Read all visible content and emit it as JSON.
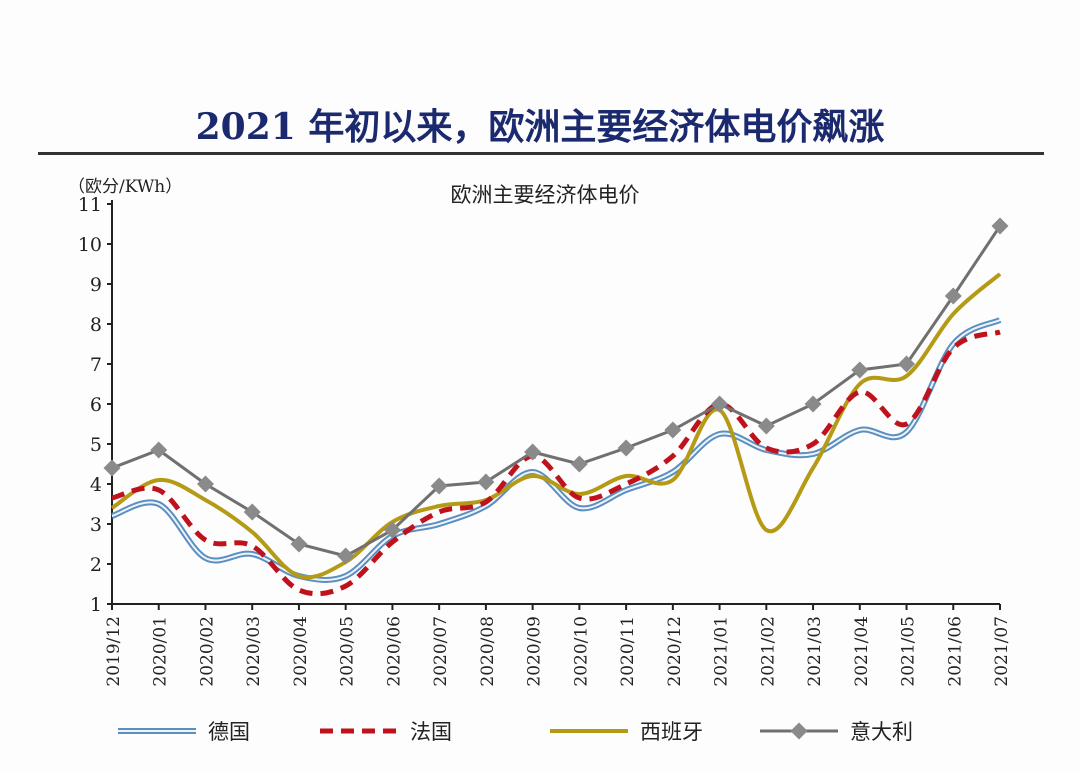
{
  "page_title": "2021 年初以来，欧洲主要经济体电价飙涨",
  "chart_data": {
    "type": "line",
    "title": "欧洲主要经济体电价",
    "ylabel": "（欧分/KWh）",
    "xlabel": "",
    "ylim": [
      1,
      11
    ],
    "yticks": [
      "1",
      "2",
      "3",
      "4",
      "5",
      "6",
      "7",
      "8",
      "9",
      "10",
      "11"
    ],
    "categories": [
      "2019/12",
      "2020/01",
      "2020/02",
      "2020/03",
      "2020/04",
      "2020/05",
      "2020/06",
      "2020/07",
      "2020/08",
      "2020/09",
      "2020/10",
      "2020/11",
      "2020/12",
      "2021/01",
      "2021/02",
      "2021/03",
      "2021/04",
      "2021/05",
      "2021/06",
      "2021/07"
    ],
    "legend_position": "bottom",
    "grid": false,
    "series": [
      {
        "name": "德国",
        "color": "#5b8fc0",
        "style": "double-line",
        "values": [
          3.2,
          3.5,
          2.15,
          2.25,
          1.7,
          1.7,
          2.7,
          3.0,
          3.45,
          4.3,
          3.4,
          3.85,
          4.3,
          5.25,
          4.85,
          4.75,
          5.35,
          5.3,
          7.5,
          8.1
        ]
      },
      {
        "name": "法国",
        "color": "#c0121c",
        "style": "dashed",
        "values": [
          3.65,
          3.85,
          2.6,
          2.45,
          1.35,
          1.45,
          2.55,
          3.3,
          3.55,
          4.7,
          3.65,
          4.0,
          4.7,
          6.0,
          4.9,
          5.0,
          6.3,
          5.5,
          7.4,
          7.8
        ]
      },
      {
        "name": "西班牙",
        "color": "#b59a16",
        "style": "solid",
        "values": [
          3.4,
          4.1,
          3.6,
          2.8,
          1.7,
          2.05,
          3.05,
          3.45,
          3.6,
          4.2,
          3.75,
          4.2,
          4.1,
          5.85,
          2.85,
          4.4,
          6.5,
          6.7,
          8.25,
          9.25
        ]
      },
      {
        "name": "意大利",
        "color": "#707070",
        "style": "diamond-markers",
        "values": [
          4.4,
          4.85,
          4.0,
          3.3,
          2.5,
          2.2,
          2.85,
          3.95,
          4.05,
          4.8,
          4.5,
          4.9,
          5.35,
          6.0,
          5.45,
          6.0,
          6.85,
          7.0,
          8.7,
          10.45
        ]
      }
    ]
  }
}
